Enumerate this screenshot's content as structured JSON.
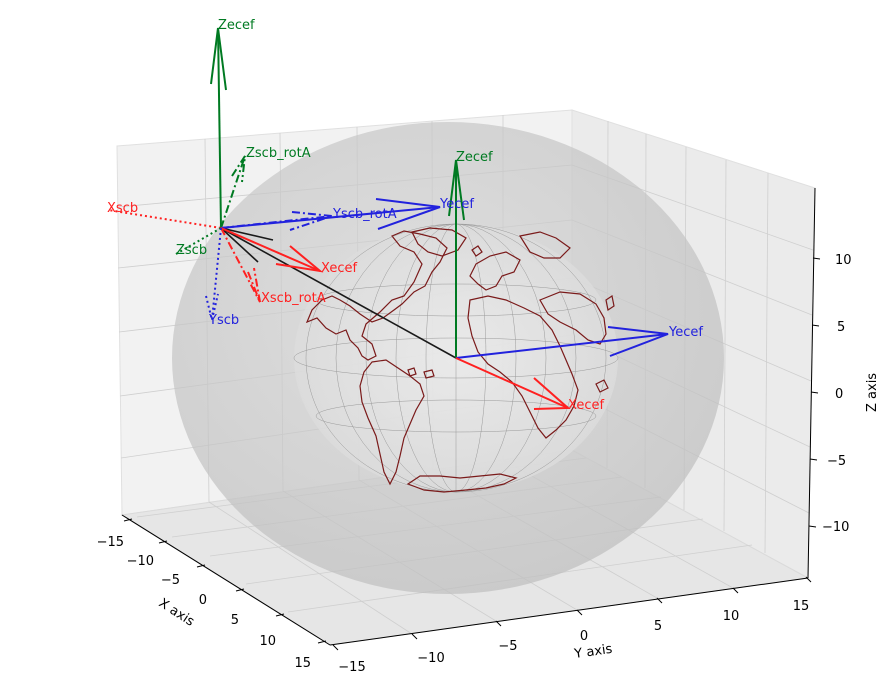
{
  "chart_data": {
    "type": "3d-vector-plot",
    "axes": {
      "x": {
        "label": "X axis",
        "ticks": [
          "−15",
          "−10",
          "−5",
          "0",
          "5",
          "10",
          "15"
        ],
        "range": [
          -15,
          15
        ]
      },
      "y": {
        "label": "Y axis",
        "ticks": [
          "−15",
          "−10",
          "−5",
          "0",
          "5",
          "10",
          "15"
        ],
        "range": [
          -15,
          15
        ]
      },
      "z": {
        "label": "Z axis",
        "ticks": [
          "−10",
          "−5",
          "0",
          "5",
          "10"
        ],
        "range": [
          -13,
          13
        ]
      }
    },
    "grid": true,
    "vectors": [
      {
        "label": "Zecef",
        "color": "#007a22",
        "style": "solid",
        "frame": "spacecraft"
      },
      {
        "label": "Zscb_rotA",
        "color": "#007a22",
        "style": "dashdot",
        "frame": "spacecraft"
      },
      {
        "label": "Xscb",
        "color": "#ff2020",
        "style": "dotted",
        "frame": "spacecraft"
      },
      {
        "label": "Zscb",
        "color": "#007a22",
        "style": "dotted",
        "frame": "spacecraft"
      },
      {
        "label": "Yscb_rotA",
        "color": "#2222dd",
        "style": "dashdot",
        "frame": "spacecraft"
      },
      {
        "label": "Yecef",
        "color": "#2222dd",
        "style": "solid",
        "frame": "spacecraft"
      },
      {
        "label": "Xecef",
        "color": "#ff2020",
        "style": "solid",
        "frame": "spacecraft"
      },
      {
        "label": "Xscb_rotA",
        "color": "#ff2020",
        "style": "dashdot",
        "frame": "spacecraft"
      },
      {
        "label": "Yscb",
        "color": "#2222dd",
        "style": "dotted",
        "frame": "spacecraft"
      },
      {
        "label": "Zecef",
        "color": "#007a22",
        "style": "solid",
        "frame": "earth"
      },
      {
        "label": "Yecef",
        "color": "#2222dd",
        "style": "solid",
        "frame": "earth"
      },
      {
        "label": "Xecef",
        "color": "#ff2020",
        "style": "solid",
        "frame": "earth"
      }
    ],
    "colors": {
      "green": "#007a22",
      "blue": "#2222dd",
      "red": "#ff2020",
      "coast": "#7a1a1a",
      "pane": "#f2f2f2"
    }
  }
}
